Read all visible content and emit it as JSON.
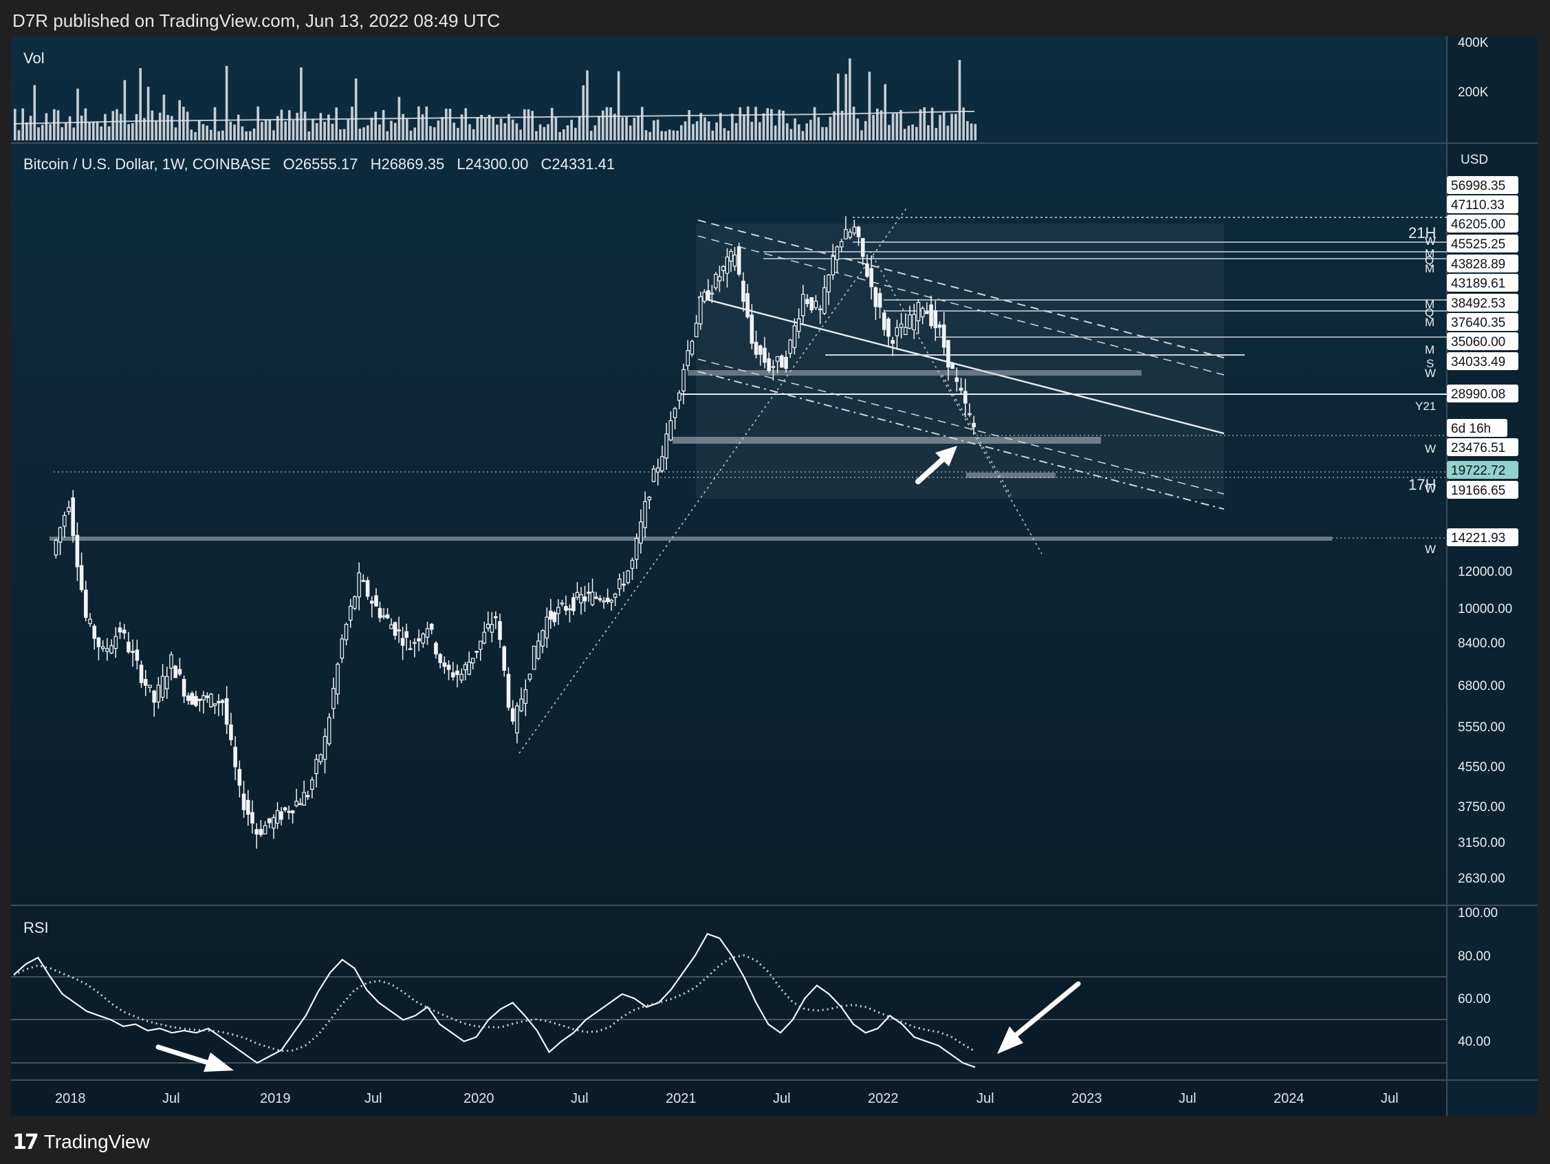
{
  "header": {
    "published": "D7R published on TradingView.com, Jun 13, 2022 08:49 UTC"
  },
  "footer": {
    "logo_mark": "17",
    "brand": "TradingView"
  },
  "colors": {
    "background_top": "#0c2a3d",
    "background_bottom": "#0a1b27",
    "candle": "#f2f4f6",
    "grid": "#5b6b77",
    "tag_highlight": "#8fd3cc"
  },
  "chart_data": {
    "type": "candlestick",
    "title": "Bitcoin / U.S. Dollar, 1W, COINBASE",
    "ohlc_header": {
      "open": "O26555.17",
      "high": "H26869.35",
      "low": "L24300.00",
      "close": "C24331.41"
    },
    "currency": "USD",
    "time_axis": [
      "2018",
      "Jul",
      "2019",
      "Jul",
      "2020",
      "Jul",
      "2021",
      "Jul",
      "2022",
      "Jul",
      "2023",
      "Jul",
      "2024",
      "Jul"
    ],
    "price_axis": [
      "12000.00",
      "10000.00",
      "8400.00",
      "6800.00",
      "5550.00",
      "4550.00",
      "3750.00",
      "3150.00",
      "2630.00"
    ],
    "price_tags": [
      {
        "label": "56998.35",
        "price": 56998.35,
        "highlight": false
      },
      {
        "label": "47110.33",
        "price": 47110.33,
        "highlight": false
      },
      {
        "label": "46205.00",
        "price": 46205.0,
        "highlight": false
      },
      {
        "label": "45525.25",
        "price": 45525.25,
        "highlight": false
      },
      {
        "label": "43828.89",
        "price": 43828.89,
        "highlight": false
      },
      {
        "label": "43189.61",
        "price": 43189.61,
        "highlight": false
      },
      {
        "label": "38492.53",
        "price": 38492.53,
        "highlight": false
      },
      {
        "label": "37640.35",
        "price": 37640.35,
        "highlight": false
      },
      {
        "label": "35060.00",
        "price": 35060.0,
        "highlight": false
      },
      {
        "label": "34033.49",
        "price": 34033.49,
        "highlight": false
      },
      {
        "label": "28990.08",
        "price": 28990.08,
        "highlight": false
      },
      {
        "label": "6d 16h",
        "price": null,
        "highlight": false
      },
      {
        "label": "23476.51",
        "price": 23476.51,
        "highlight": false
      },
      {
        "label": "19722.72",
        "price": 19722.72,
        "highlight": true
      },
      {
        "label": "19166.65",
        "price": 19166.65,
        "highlight": false
      },
      {
        "label": "14221.93",
        "price": 14221.93,
        "highlight": false
      }
    ],
    "side_markers": [
      "21H",
      "W",
      "M",
      "Q",
      "M",
      "M",
      "Q",
      "M",
      "M",
      "S",
      "W",
      "Y21",
      "W",
      "17H",
      "W",
      "W"
    ],
    "weekly_close_path": [
      [
        "2017-12",
        13000
      ],
      [
        "2018-01",
        17000
      ],
      [
        "2018-02",
        9500
      ],
      [
        "2018-03",
        8000
      ],
      [
        "2018-04",
        9000
      ],
      [
        "2018-05",
        7500
      ],
      [
        "2018-06",
        6300
      ],
      [
        "2018-07",
        7700
      ],
      [
        "2018-08",
        6400
      ],
      [
        "2018-10",
        6300
      ],
      [
        "2018-11",
        4000
      ],
      [
        "2018-12",
        3300
      ],
      [
        "2019-01",
        3500
      ],
      [
        "2019-03",
        4000
      ],
      [
        "2019-04",
        5200
      ],
      [
        "2019-05",
        8500
      ],
      [
        "2019-06",
        11500
      ],
      [
        "2019-07",
        10000
      ],
      [
        "2019-09",
        8300
      ],
      [
        "2019-10",
        9200
      ],
      [
        "2019-11",
        7300
      ],
      [
        "2019-12",
        7200
      ],
      [
        "2020-02",
        9600
      ],
      [
        "2020-03",
        5500
      ],
      [
        "2020-04",
        7500
      ],
      [
        "2020-05",
        9500
      ],
      [
        "2020-07",
        10500
      ],
      [
        "2020-09",
        10700
      ],
      [
        "2020-10",
        12500
      ],
      [
        "2020-11",
        18000
      ],
      [
        "2020-12",
        23000
      ],
      [
        "2021-01",
        33000
      ],
      [
        "2021-02",
        45000
      ],
      [
        "2021-04",
        58000
      ],
      [
        "2021-05",
        37000
      ],
      [
        "2021-06",
        33000
      ],
      [
        "2021-07",
        34000
      ],
      [
        "2021-08",
        47000
      ],
      [
        "2021-09",
        43000
      ],
      [
        "2021-10",
        61000
      ],
      [
        "2021-11",
        65000
      ],
      [
        "2021-12",
        49000
      ],
      [
        "2022-01",
        38000
      ],
      [
        "2022-02",
        40000
      ],
      [
        "2022-03",
        45000
      ],
      [
        "2022-04",
        39000
      ],
      [
        "2022-05",
        30000
      ],
      [
        "2022-06",
        24331
      ]
    ]
  },
  "volume_pane": {
    "label": "Vol",
    "axis": [
      "400K",
      "200K"
    ]
  },
  "rsi_pane": {
    "label": "RSI",
    "axis": [
      "100.00",
      "80.00",
      "60.00",
      "40.00"
    ],
    "levels": [
      70,
      50,
      30
    ],
    "values": [
      71,
      76,
      79,
      70,
      62,
      58,
      54,
      52,
      50,
      47,
      48,
      45,
      46,
      44,
      45,
      44,
      46,
      42,
      38,
      34,
      30,
      33,
      36,
      44,
      52,
      63,
      72,
      78,
      74,
      64,
      58,
      54,
      50,
      52,
      56,
      48,
      44,
      40,
      42,
      50,
      55,
      58,
      52,
      45,
      35,
      40,
      44,
      50,
      54,
      58,
      62,
      60,
      56,
      58,
      64,
      72,
      80,
      90,
      88,
      80,
      70,
      58,
      48,
      44,
      50,
      60,
      66,
      62,
      56,
      48,
      44,
      46,
      52,
      48,
      42,
      40,
      38,
      34,
      30,
      28
    ]
  },
  "annotations": {
    "arrows": [
      "price-arrow",
      "rsi-arrow-left",
      "rsi-arrow-right"
    ]
  }
}
